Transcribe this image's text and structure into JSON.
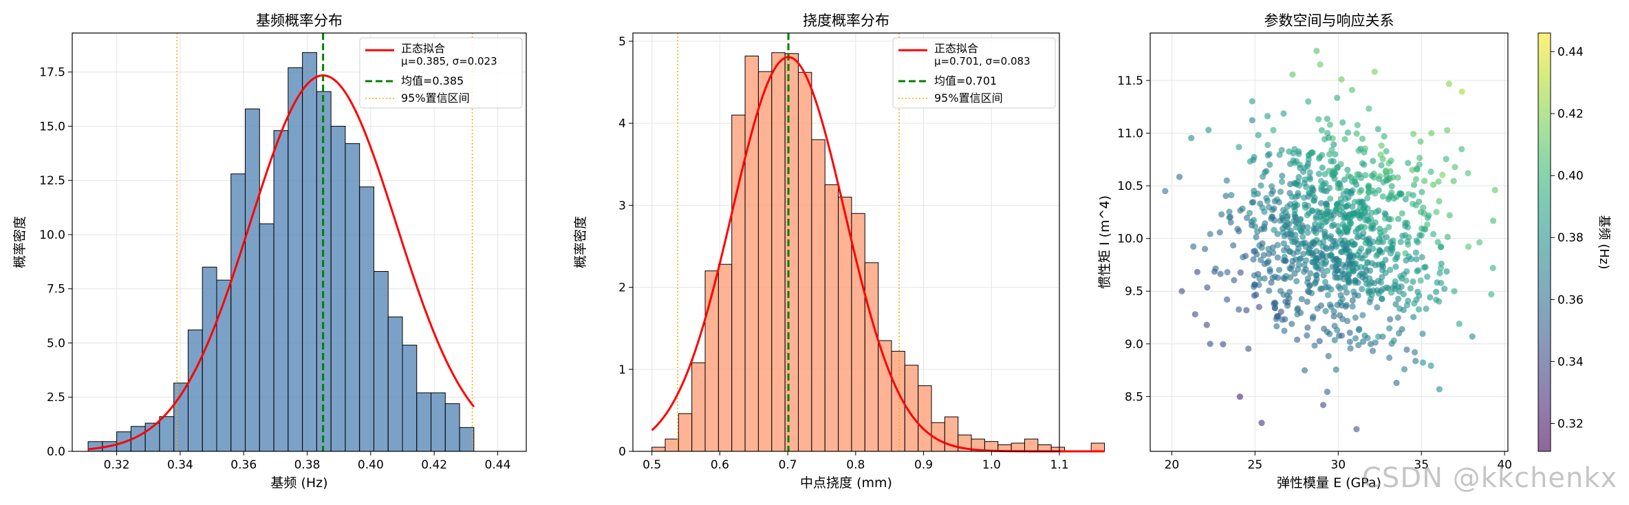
{
  "watermark": "CSDN @kkchenkx",
  "chart_data": [
    {
      "type": "bar",
      "title": "基频概率分布",
      "xlabel": "基频 (Hz)",
      "ylabel": "概率密度",
      "xlim": [
        0.306,
        0.449
      ],
      "ylim": [
        0,
        19.3
      ],
      "xticks": [
        0.32,
        0.34,
        0.36,
        0.38,
        0.4,
        0.42,
        0.44
      ],
      "xtick_labels": [
        "0.32",
        "0.34",
        "0.36",
        "0.38",
        "0.40",
        "0.42",
        "0.44"
      ],
      "yticks": [
        0.0,
        2.5,
        5.0,
        7.5,
        10.0,
        12.5,
        15.0,
        17.5
      ],
      "ytick_labels": [
        "0.0",
        "2.5",
        "5.0",
        "7.5",
        "10.0",
        "12.5",
        "15.0",
        "17.5"
      ],
      "grid": true,
      "legend_position": "top-right",
      "bar_color": "#5a8ab8",
      "bins_start": 0.311,
      "bin_width": 0.0045,
      "values": [
        0.45,
        0.45,
        0.9,
        1.15,
        1.3,
        1.6,
        3.15,
        5.6,
        8.5,
        7.9,
        12.8,
        15.8,
        10.5,
        14.8,
        17.7,
        18.4,
        16.6,
        15.0,
        14.2,
        12.2,
        8.3,
        6.2,
        4.9,
        2.7,
        2.7,
        2.2,
        1.1
      ],
      "series": [
        {
          "name": "正态拟合",
          "sub": "μ=0.385, σ=0.023",
          "color": "#ff0000",
          "mean": 0.385,
          "sd": 0.023
        },
        {
          "name": "均值=0.385",
          "color": "#008000",
          "x": 0.385
        },
        {
          "name": "95%置信区间",
          "color": "#ffa500",
          "x": [
            0.339,
            0.432
          ]
        }
      ]
    },
    {
      "type": "bar",
      "title": "挠度概率分布",
      "xlabel": "中点挠度 (mm)",
      "ylabel": "概率密度",
      "xlim": [
        0.472,
        1.1
      ],
      "ylim": [
        0,
        5.1
      ],
      "xticks": [
        0.5,
        0.6,
        0.7,
        0.8,
        0.9,
        1.0,
        1.1
      ],
      "xtick_labels": [
        "0.5",
        "0.6",
        "0.7",
        "0.8",
        "0.9",
        "1.0",
        "1.1"
      ],
      "yticks": [
        0,
        1,
        2,
        3,
        4,
        5
      ],
      "ytick_labels": [
        "0",
        "1",
        "2",
        "3",
        "4",
        "5"
      ],
      "grid": true,
      "legend_position": "top-right",
      "bar_color": "#ffa07a",
      "bins_start": 0.5,
      "bin_width": 0.0196,
      "values": [
        0.05,
        0.15,
        0.46,
        1.08,
        2.2,
        2.28,
        4.1,
        4.82,
        4.63,
        4.86,
        4.85,
        4.62,
        3.8,
        3.25,
        3.1,
        2.9,
        2.3,
        1.35,
        1.22,
        1.05,
        0.8,
        0.35,
        0.42,
        0.2,
        0.15,
        0.12,
        0.08,
        0.1,
        0.15,
        0.08,
        0.05,
        0.0,
        0.0,
        0.1
      ],
      "series": [
        {
          "name": "正态拟合",
          "sub": "μ=0.701, σ=0.083",
          "color": "#ff0000",
          "mean": 0.701,
          "sd": 0.083
        },
        {
          "name": "均值=0.701",
          "color": "#008000",
          "x": 0.701
        },
        {
          "name": "95%置信区间",
          "color": "#ffa500",
          "x": [
            0.538,
            0.864
          ]
        }
      ]
    },
    {
      "type": "scatter",
      "title": "参数空间与响应关系",
      "xlabel": "弹性模量 E (GPa)",
      "ylabel": "惯性矩 I (m^4)",
      "xlim": [
        18.7,
        40.2
      ],
      "ylim": [
        7.98,
        11.95
      ],
      "xticks": [
        20,
        25,
        30,
        35,
        40
      ],
      "xtick_labels": [
        "20",
        "25",
        "30",
        "35",
        "40"
      ],
      "yticks": [
        8.5,
        9.0,
        9.5,
        10.0,
        10.5,
        11.0,
        11.5
      ],
      "ytick_labels": [
        "8.5",
        "9.0",
        "9.5",
        "10.0",
        "10.5",
        "11.0",
        "11.5"
      ],
      "grid": true,
      "colormap": "viridis",
      "colorbar": {
        "label": "基频 (Hz)",
        "range": [
          0.311,
          0.446
        ],
        "ticks": [
          0.32,
          0.34,
          0.36,
          0.38,
          0.4,
          0.42,
          0.44
        ],
        "tick_labels": [
          "0.32",
          "0.34",
          "0.36",
          "0.38",
          "0.40",
          "0.42",
          "0.44"
        ]
      },
      "point_count": 1000,
      "points_sample": [
        [
          19.6,
          10.45
        ],
        [
          20.6,
          9.5
        ],
        [
          21.4,
          9.28
        ],
        [
          22.3,
          9.0
        ],
        [
          22.2,
          11.03
        ],
        [
          22.1,
          9.18
        ],
        [
          25.4,
          8.25
        ],
        [
          28.7,
          11.78
        ],
        [
          29.1,
          8.42
        ],
        [
          31.1,
          8.19
        ],
        [
          30.2,
          11.51
        ],
        [
          36.7,
          10.22
        ],
        [
          37.8,
          10.62
        ],
        [
          39.3,
          9.72
        ],
        [
          39.2,
          9.47
        ],
        [
          33.5,
          8.63
        ],
        [
          34.6,
          8.92
        ],
        [
          28.2,
          11.3
        ],
        [
          35.6,
          11.0
        ],
        [
          23.3,
          10.55
        ]
      ]
    }
  ]
}
